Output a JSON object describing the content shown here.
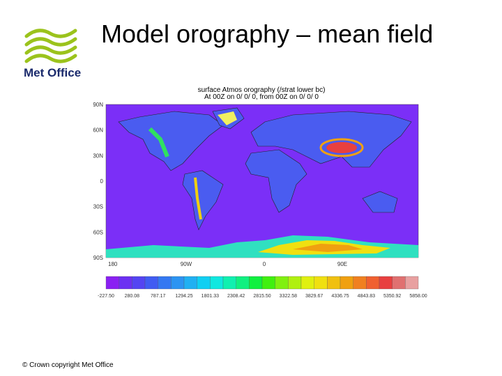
{
  "header": {
    "title": "Model orography – mean field",
    "logo_text": "Met Office"
  },
  "map": {
    "title_lines": [
      "surface Atmos orography (/strat lower bc)",
      "At 00Z on 0/ 0/ 0, from 00Z on 0/ 0/ 0"
    ],
    "lat_labels": [
      "90N",
      "60N",
      "30N",
      "0",
      "30S",
      "60S",
      "90S"
    ],
    "lon_labels": [
      "180",
      "90W",
      "0",
      "90E"
    ],
    "colorbar": {
      "labels": [
        "-227.50",
        "280.08",
        "787.17",
        "1294.25",
        "1801.33",
        "2308.42",
        "2815.50",
        "3322.58",
        "3829.67",
        "4336.75",
        "4843.83",
        "5350.92",
        "5858.00"
      ],
      "colors": [
        "#8a20f2",
        "#6c30f2",
        "#5444f2",
        "#405cf2",
        "#3478f2",
        "#2c94f2",
        "#20b0f2",
        "#10cff2",
        "#10e8e0",
        "#10f0b0",
        "#10f080",
        "#10f040",
        "#40f010",
        "#80f010",
        "#b0f010",
        "#e0f010",
        "#f0e010",
        "#f0c010",
        "#f0a010",
        "#f08020",
        "#f06030",
        "#e84040",
        "#e07070",
        "#e8a0a0"
      ]
    }
  },
  "footer": "© Crown copyright   Met Office"
}
